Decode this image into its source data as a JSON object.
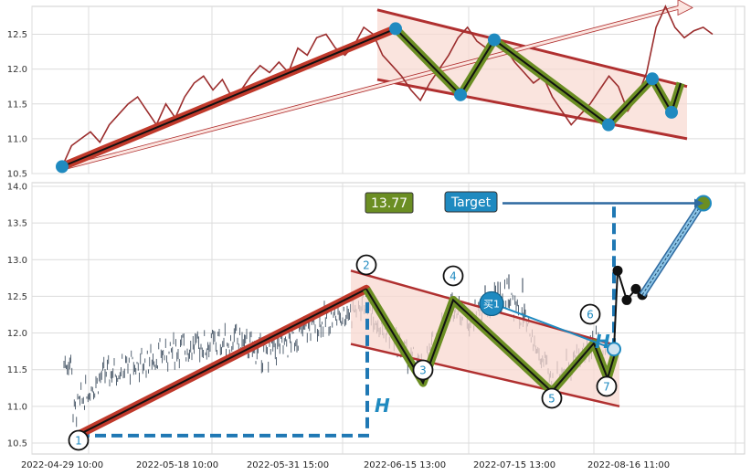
{
  "chart_data": [
    {
      "type": "line",
      "panel": "top",
      "ylim": [
        10.5,
        12.9
      ],
      "yticks": [
        "10.5",
        "11.0",
        "11.5",
        "12.0",
        "12.5"
      ],
      "grid": true,
      "series": [
        {
          "values": [
            10.6,
            10.9,
            11.0,
            11.1,
            10.95,
            11.2,
            11.35,
            11.5,
            11.6,
            11.4,
            11.2,
            11.5,
            11.3,
            11.6,
            11.8,
            11.9,
            11.7,
            11.85,
            11.6,
            11.7,
            11.9,
            12.05,
            11.95,
            12.1,
            11.95,
            12.3,
            12.2,
            12.45,
            12.5,
            12.3,
            12.2,
            12.35,
            12.6,
            12.5,
            12.2,
            12.05,
            11.9,
            11.7,
            11.55,
            11.8,
            12.0,
            12.2,
            12.45,
            12.6,
            12.4,
            12.3,
            12.45,
            12.3,
            12.1,
            11.95,
            11.8,
            11.9,
            11.6,
            11.4,
            11.2,
            11.35,
            11.5,
            11.7,
            11.9,
            11.75,
            11.4,
            11.6,
            11.95,
            12.6,
            12.9,
            12.6,
            12.45,
            12.55,
            12.6,
            12.5
          ]
        }
      ],
      "annotations": {
        "markers": [
          [
            0,
            10.6
          ],
          [
            1,
            12.58
          ],
          [
            2,
            11.63
          ],
          [
            3,
            12.42
          ],
          [
            4,
            11.2
          ],
          [
            5,
            11.86
          ],
          [
            6,
            11.38
          ]
        ],
        "trend_up": [
          [
            10.6
          ],
          [
            12.58
          ]
        ],
        "channel_upper": [
          12.85,
          11.75
        ],
        "channel_lower": [
          11.85,
          11.0
        ]
      }
    },
    {
      "type": "candlestick",
      "panel": "bottom",
      "ylim": [
        10.35,
        14.05
      ],
      "yticks": [
        "10.5",
        "11.0",
        "11.5",
        "12.0",
        "12.5",
        "13.0",
        "13.5",
        "14.0"
      ],
      "x_tick_labels": [
        "2022-04-29 10:00",
        "2022-05-18 10:00",
        "2022-05-31 15:00",
        "2022-06-15 13:00",
        "2022-07-15 13:00",
        "2022-08-16 11:00"
      ],
      "grid": true,
      "points": [
        {
          "label": "1",
          "value": 10.6
        },
        {
          "label": "2",
          "value": 12.6
        },
        {
          "label": "3",
          "value": 11.3
        },
        {
          "label": "4",
          "value": 12.45
        },
        {
          "label": "5",
          "value": 11.2
        },
        {
          "label": "6",
          "value": 11.8
        },
        {
          "label": "7",
          "value": 11.38
        }
      ],
      "price_box": "13.77",
      "target_label": "Target",
      "target_value": 13.77,
      "buy_label": "买1",
      "height_label": "H"
    }
  ],
  "colors": {
    "trend_up": "#c0392b",
    "zigzag": "#6b8e23",
    "channel": "#b03030",
    "channel_fill": "#f8d8d0",
    "marker": "#1f8ac0",
    "price_line": "#9b2d2d",
    "candle": "#2c3e50",
    "dash": "#1f78b4",
    "target_box": "#1f8ac0",
    "price_box": "#6b8e23"
  }
}
